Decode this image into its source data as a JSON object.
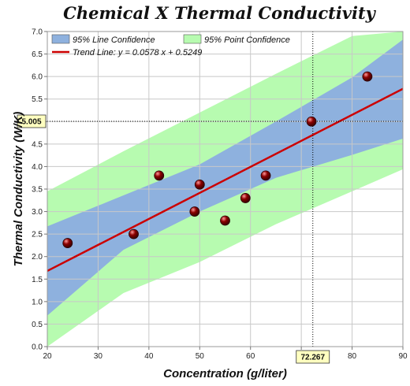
{
  "chart_data": {
    "type": "scatter",
    "title": "Chemical X Thermal Conductivity",
    "xlabel": "Concentration (g/liter)",
    "ylabel": "Thermal Conductivity (W/K)",
    "xlim": [
      20,
      90
    ],
    "ylim": [
      0,
      7
    ],
    "x_ticks": [
      "20",
      "30",
      "40",
      "50",
      "60",
      "70",
      "80",
      "90"
    ],
    "y_ticks": [
      "0.0",
      "0.5",
      "1.0",
      "1.5",
      "2.0",
      "2.5",
      "3.0",
      "3.5",
      "4.0",
      "4.5",
      "5.0",
      "5.5",
      "6.0",
      "6.5",
      "7.0"
    ],
    "grid": true,
    "legend_position": "top-left",
    "points": [
      {
        "x": 24,
        "y": 2.3
      },
      {
        "x": 37,
        "y": 2.5
      },
      {
        "x": 42,
        "y": 3.8
      },
      {
        "x": 49,
        "y": 3.0
      },
      {
        "x": 50,
        "y": 3.6
      },
      {
        "x": 55,
        "y": 2.8
      },
      {
        "x": 59,
        "y": 3.3
      },
      {
        "x": 63,
        "y": 3.8
      },
      {
        "x": 72,
        "y": 5.0
      },
      {
        "x": 83,
        "y": 6.0
      }
    ],
    "trend": {
      "slope": 0.0578,
      "intercept": 0.5249
    },
    "line_confidence": [
      {
        "x": 20,
        "lower": 0.69,
        "upper": 2.67
      },
      {
        "x": 35,
        "lower": 2.15,
        "upper": 3.36
      },
      {
        "x": 50,
        "lower": 3.0,
        "upper": 4.05
      },
      {
        "x": 65,
        "lower": 3.75,
        "upper": 5.0
      },
      {
        "x": 80,
        "lower": 4.26,
        "upper": 5.98
      },
      {
        "x": 90,
        "lower": 4.62,
        "upper": 6.82
      }
    ],
    "point_confidence": [
      {
        "x": 20,
        "lower": 0.0,
        "upper": 3.45
      },
      {
        "x": 35,
        "lower": 1.19,
        "upper": 4.34
      },
      {
        "x": 50,
        "lower": 1.88,
        "upper": 5.2
      },
      {
        "x": 65,
        "lower": 2.72,
        "upper": 6.06
      },
      {
        "x": 80,
        "lower": 3.45,
        "upper": 6.9
      },
      {
        "x": 90,
        "lower": 3.94,
        "upper": 7.0
      }
    ],
    "legend": {
      "line_confidence": "95% Line Confidence",
      "point_confidence": "95% Point Confidence",
      "trend_line": "Trend Line: y = 0.0578 x + 0.5249"
    },
    "cursor": {
      "x": 72.267,
      "y": 5.005,
      "x_label": "72.267",
      "y_label": "5.005"
    },
    "colors": {
      "line_band": "#8eb1de",
      "point_band": "#b7fbb0",
      "trend": "#cc0000",
      "marker": "#8b0000",
      "grid": "#c8c8c8",
      "cursor_box": "#ffffc0"
    }
  }
}
